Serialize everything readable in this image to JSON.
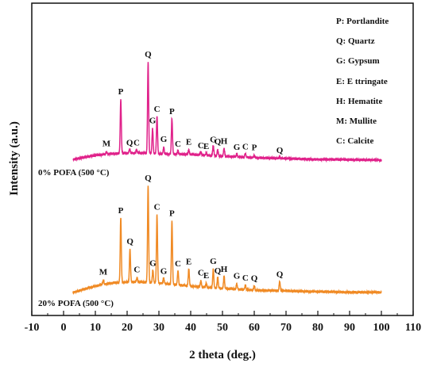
{
  "chart_data": {
    "type": "line",
    "xlabel": "2 theta (deg.)",
    "ylabel": "Intensity (a.u.)",
    "xlim": [
      -10,
      110
    ],
    "x_ticks": [
      "-10",
      "0",
      "10",
      "20",
      "30",
      "40",
      "50",
      "60",
      "70",
      "80",
      "90",
      "100",
      "110"
    ],
    "y_ticks": false,
    "grid": false,
    "legend": {
      "placement": "top-right",
      "entries": [
        "P: Portlandite",
        "Q: Quartz",
        "G: Gypsum",
        "E: E ttringate",
        "H: Hematite",
        "M: Mullite",
        "C: Calcite"
      ]
    },
    "series": [
      {
        "name": "0% POFA (500 °C)",
        "color": "#e0218a",
        "baseline": 8,
        "background": [
          [
            3,
            3
          ],
          [
            10,
            8
          ],
          [
            15,
            10
          ],
          [
            20,
            11
          ],
          [
            25,
            11
          ],
          [
            30,
            10
          ],
          [
            40,
            9
          ],
          [
            50,
            7
          ],
          [
            60,
            5
          ],
          [
            70,
            4
          ],
          [
            80,
            3
          ],
          [
            90,
            2.5
          ],
          [
            100,
            2
          ]
        ],
        "peaks": [
          {
            "x": 13.5,
            "h": 3,
            "label": "M"
          },
          {
            "x": 18.0,
            "h": 68,
            "label": "P"
          },
          {
            "x": 20.8,
            "h": 5,
            "label": "Q"
          },
          {
            "x": 23.0,
            "h": 4,
            "label": "C"
          },
          {
            "x": 26.6,
            "h": 115,
            "label": "Q"
          },
          {
            "x": 28.0,
            "h": 32,
            "label": "G"
          },
          {
            "x": 29.4,
            "h": 48,
            "label": "C"
          },
          {
            "x": 31.5,
            "h": 8,
            "label": "G"
          },
          {
            "x": 34.1,
            "h": 45,
            "label": "P"
          },
          {
            "x": 36.0,
            "h": 5,
            "label": "C"
          },
          {
            "x": 39.4,
            "h": 6,
            "label": "E"
          },
          {
            "x": 43.2,
            "h": 4,
            "label": "C"
          },
          {
            "x": 44.9,
            "h": 3,
            "label": "E"
          },
          {
            "x": 47.1,
            "h": 13,
            "label": "G"
          },
          {
            "x": 48.5,
            "h": 8,
            "label": "Q"
          },
          {
            "x": 50.5,
            "h": 10,
            "label": "H"
          },
          {
            "x": 54.5,
            "h": 4,
            "label": "G"
          },
          {
            "x": 57.2,
            "h": 5,
            "label": "C"
          },
          {
            "x": 60.0,
            "h": 3,
            "label": "P"
          },
          {
            "x": 68.0,
            "h": 2,
            "label": "Q"
          }
        ]
      },
      {
        "name": "20% POFA (500 °C)",
        "color": "#f08a24",
        "baseline": 4,
        "background": [
          [
            3,
            2
          ],
          [
            8,
            8
          ],
          [
            12,
            12
          ],
          [
            15,
            14
          ],
          [
            18,
            15
          ],
          [
            22,
            15
          ],
          [
            25,
            15
          ],
          [
            30,
            14
          ],
          [
            35,
            12
          ],
          [
            40,
            10
          ],
          [
            50,
            7
          ],
          [
            60,
            5
          ],
          [
            70,
            4
          ],
          [
            80,
            3
          ],
          [
            90,
            2.5
          ],
          [
            100,
            2
          ]
        ],
        "peaks": [
          {
            "x": 12.5,
            "h": 5,
            "label": "M"
          },
          {
            "x": 18.0,
            "h": 82,
            "label": "P"
          },
          {
            "x": 20.9,
            "h": 42,
            "label": "Q"
          },
          {
            "x": 23.1,
            "h": 6,
            "label": "C"
          },
          {
            "x": 26.6,
            "h": 122,
            "label": "Q"
          },
          {
            "x": 28.1,
            "h": 16,
            "label": "G"
          },
          {
            "x": 29.4,
            "h": 86,
            "label": "C"
          },
          {
            "x": 31.5,
            "h": 7,
            "label": "G"
          },
          {
            "x": 34.1,
            "h": 80,
            "label": "P"
          },
          {
            "x": 36.0,
            "h": 18,
            "label": "C"
          },
          {
            "x": 39.4,
            "h": 22,
            "label": "E"
          },
          {
            "x": 43.2,
            "h": 8,
            "label": "C"
          },
          {
            "x": 44.9,
            "h": 5,
            "label": "E"
          },
          {
            "x": 47.1,
            "h": 24,
            "label": "G"
          },
          {
            "x": 48.5,
            "h": 14,
            "label": "Q"
          },
          {
            "x": 50.5,
            "h": 16,
            "label": "H"
          },
          {
            "x": 54.5,
            "h": 7,
            "label": "G"
          },
          {
            "x": 57.2,
            "h": 6,
            "label": "C"
          },
          {
            "x": 60.0,
            "h": 5,
            "label": "Q"
          },
          {
            "x": 68.0,
            "h": 12,
            "label": "Q"
          }
        ]
      }
    ]
  }
}
